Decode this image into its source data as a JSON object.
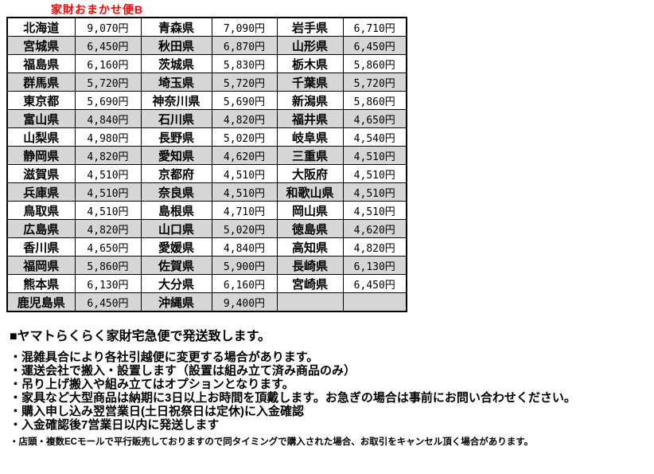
{
  "title": "家財おまかせ便B",
  "colors": {
    "title_red": "#ff0000",
    "row_alt_gray": "#d6d6d6",
    "border_black": "#000000"
  },
  "table": {
    "rows": [
      [
        "北海道",
        "9,070円",
        "青森県",
        "7,090円",
        "岩手県",
        "6,710円"
      ],
      [
        "宮城県",
        "6,450円",
        "秋田県",
        "6,870円",
        "山形県",
        "6,450円"
      ],
      [
        "福島県",
        "6,160円",
        "茨城県",
        "5,830円",
        "栃木県",
        "5,860円"
      ],
      [
        "群馬県",
        "5,720円",
        "埼玉県",
        "5,720円",
        "千葉県",
        "5,720円"
      ],
      [
        "東京都",
        "5,690円",
        "神奈川県",
        "5,690円",
        "新潟県",
        "5,860円"
      ],
      [
        "富山県",
        "4,840円",
        "石川県",
        "4,820円",
        "福井県",
        "4,650円"
      ],
      [
        "山梨県",
        "4,980円",
        "長野県",
        "5,020円",
        "岐阜県",
        "4,540円"
      ],
      [
        "静岡県",
        "4,820円",
        "愛知県",
        "4,620円",
        "三重県",
        "4,510円"
      ],
      [
        "滋賀県",
        "4,510円",
        "京都府",
        "4,510円",
        "大阪府",
        "4,510円"
      ],
      [
        "兵庫県",
        "4,510円",
        "奈良県",
        "4,510円",
        "和歌山県",
        "4,510円"
      ],
      [
        "鳥取県",
        "4,510円",
        "島根県",
        "4,710円",
        "岡山県",
        "4,510円"
      ],
      [
        "広島県",
        "4,820円",
        "山口県",
        "5,020円",
        "徳島県",
        "4,620円"
      ],
      [
        "香川県",
        "4,650円",
        "愛媛県",
        "4,840円",
        "高知県",
        "4,820円"
      ],
      [
        "福岡県",
        "5,860円",
        "佐賀県",
        "5,900円",
        "長崎県",
        "6,130円"
      ],
      [
        "熊本県",
        "6,130円",
        "大分県",
        "6,160円",
        "宮崎県",
        "6,450円"
      ],
      [
        "鹿児島県",
        "6,450円",
        "沖縄県",
        "9,400円",
        "",
        ""
      ]
    ]
  },
  "notes": {
    "heading": "■ヤマトらくらく家財宅急便で発送致します。",
    "bullets": [
      "・混雑具合により各社引越便に変更する場合があります。",
      "・運送会社で搬入・設置します（設置は組み立て済み商品のみ）",
      "・吊り上げ搬入や組み立てはオプションとなります。",
      "・家具など大型商品は納期に3日以上お時間を頂戴します。お急ぎの場合は事前にお問い合わせください。",
      "・購入申し込み翌営業日(土日祝祭日は定休)に入金確認",
      "・入金確認後7営業日以内に発送します"
    ],
    "footnote": "・店頭・複数ECモールで平行販売しておりますので同タイミングで購入された場合、お取引をキャンセル頂く場合があります。"
  }
}
